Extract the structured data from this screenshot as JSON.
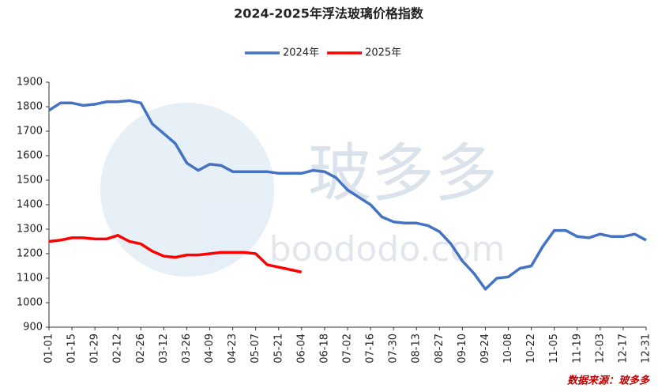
{
  "chart_data": {
    "type": "line",
    "title": "2024-2025年浮法玻璃价格指数",
    "source": "数据来源：玻多多",
    "watermark": "玻多多",
    "watermark_url": "boododo.com",
    "categories": [
      "01-01",
      null,
      "01-15",
      null,
      "01-29",
      null,
      "02-12",
      null,
      "02-26",
      null,
      "03-12",
      null,
      "03-26",
      null,
      "04-09",
      null,
      "04-23",
      null,
      "05-07",
      null,
      "05-21",
      null,
      "06-04",
      null,
      "06-18",
      null,
      "07-02",
      null,
      "07-16",
      null,
      "07-30",
      null,
      "08-13",
      null,
      "08-27",
      null,
      "09-10",
      null,
      "09-24",
      null,
      "10-08",
      null,
      "10-22",
      null,
      "11-05",
      null,
      "11-19",
      null,
      "12-03",
      null,
      "12-17",
      null,
      "12-31"
    ],
    "series": [
      {
        "name": "2024年",
        "color": "#4472c4",
        "values": [
          1785,
          1815,
          1815,
          1805,
          1810,
          1820,
          1820,
          1825,
          1815,
          1730,
          1690,
          1650,
          1570,
          1540,
          1565,
          1560,
          1535,
          1535,
          1535,
          1535,
          1528,
          1528,
          1528,
          1540,
          1535,
          1510,
          1460,
          1430,
          1400,
          1350,
          1330,
          1325,
          1325,
          1315,
          1290,
          1240,
          1170,
          1120,
          1055,
          1100,
          1105,
          1140,
          1150,
          1230,
          1295,
          1295,
          1270,
          1265,
          1280,
          1270,
          1270,
          1280,
          1255
        ]
      },
      {
        "name": "2025年",
        "color": "#ff0000",
        "values": [
          1250,
          1255,
          1265,
          1265,
          1260,
          1260,
          1275,
          1250,
          1240,
          1210,
          1190,
          1185,
          1195,
          1195,
          1200,
          1205,
          1205,
          1205,
          1200,
          1155,
          1145,
          1135,
          1125,
          null,
          null,
          null,
          null,
          null,
          null,
          null,
          null,
          null,
          null,
          null,
          null,
          null,
          null,
          null,
          null,
          null,
          null,
          null,
          null,
          null,
          null,
          null,
          null,
          null,
          null,
          null,
          null,
          null,
          null
        ]
      }
    ],
    "ylim": [
      900,
      1900
    ],
    "yticks": [
      900,
      1000,
      1100,
      1200,
      1300,
      1400,
      1500,
      1600,
      1700,
      1800,
      1900
    ],
    "grid": false,
    "legend": "top"
  }
}
